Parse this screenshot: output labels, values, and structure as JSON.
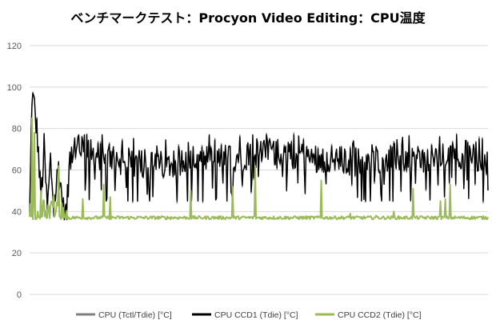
{
  "chart_data": {
    "type": "line",
    "title": "ベンチマークテスト：Procyon Video Editing：CPU温度",
    "xlabel": "",
    "ylabel": "",
    "ylim": [
      0,
      120
    ],
    "yticks": [
      0,
      20,
      40,
      60,
      80,
      100,
      120
    ],
    "grid": true,
    "legend": "bottom",
    "x_count": 570,
    "series": [
      {
        "name": "CPU (Tctl/Tdie) [°C]",
        "color": "#7f7f7f",
        "summary": {
          "start": 37,
          "peak": 97,
          "steady_min": 45,
          "steady_max": 77,
          "typical": 65
        },
        "values_note": "closely follows CPU CCD1 during the run"
      },
      {
        "name": "CPU CCD1 (Tdie) [°C]",
        "color": "#000000",
        "summary": {
          "start": 37,
          "peak": 97,
          "steady_min": 45,
          "steady_max": 77,
          "typical": 65
        },
        "anchor_points": [
          [
            0,
            37
          ],
          [
            3,
            97
          ],
          [
            6,
            90
          ],
          [
            10,
            75
          ],
          [
            14,
            45
          ],
          [
            18,
            70
          ],
          [
            22,
            40
          ],
          [
            26,
            65
          ],
          [
            30,
            42
          ],
          [
            36,
            62
          ],
          [
            42,
            40
          ],
          [
            46,
            38
          ],
          [
            50,
            66
          ],
          [
            60,
            70
          ],
          [
            100,
            65
          ],
          [
            150,
            62
          ],
          [
            200,
            64
          ],
          [
            250,
            66
          ],
          [
            300,
            68
          ],
          [
            350,
            66
          ],
          [
            400,
            64
          ],
          [
            450,
            66
          ],
          [
            500,
            65
          ],
          [
            550,
            68
          ],
          [
            569,
            62
          ]
        ]
      },
      {
        "name": "CPU CCD2 (Tdie) [°C]",
        "color": "#9bbb59",
        "summary": {
          "start": 36,
          "peak": 85,
          "baseline": 37
        },
        "spikes": [
          [
            3,
            85
          ],
          [
            6,
            78
          ],
          [
            10,
            40
          ],
          [
            14,
            50
          ],
          [
            18,
            45
          ],
          [
            24,
            42
          ],
          [
            30,
            48
          ],
          [
            36,
            62
          ],
          [
            40,
            44
          ],
          [
            66,
            46
          ],
          [
            92,
            53
          ],
          [
            100,
            47
          ],
          [
            200,
            50
          ],
          [
            252,
            52
          ],
          [
            280,
            62
          ],
          [
            362,
            55
          ],
          [
            398,
            39
          ],
          [
            430,
            38
          ],
          [
            452,
            40
          ],
          [
            476,
            51
          ],
          [
            510,
            45
          ],
          [
            516,
            46
          ],
          [
            522,
            53
          ]
        ]
      }
    ]
  }
}
